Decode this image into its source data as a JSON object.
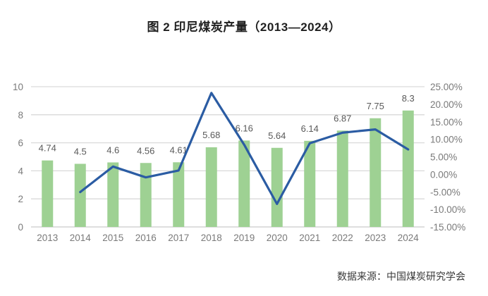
{
  "title": "图 2 印尼煤炭产量（2013—2024）",
  "footer": {
    "source": "数据来源：中国煤炭研究学会"
  },
  "colors": {
    "bar": "#9ED193",
    "line": "#2B5CA3",
    "grid": "#D9D9D9",
    "axis_bottom": "#C9C9C9",
    "axis_text": "#7A7A7A",
    "label_text": "#595959",
    "title_text": "#1F1F1F",
    "background": "#FFFFFF"
  },
  "chart_data": {
    "type": "bar+line combo",
    "title": "图 2 印尼煤炭产量（2013—2024）",
    "categories": [
      "2013",
      "2014",
      "2015",
      "2016",
      "2017",
      "2018",
      "2019",
      "2020",
      "2021",
      "2022",
      "2023",
      "2024"
    ],
    "series": [
      {
        "name": "bars_production",
        "type": "bar",
        "axis": "left",
        "values": [
          4.74,
          4.5,
          4.6,
          4.56,
          4.61,
          5.68,
          6.16,
          5.64,
          6.14,
          6.87,
          7.75,
          8.3
        ],
        "data_labels": [
          "4.74",
          "4.5",
          "4.6",
          "4.56",
          "4.61",
          "5.68",
          "6.16",
          "5.64",
          "6.14",
          "6.87",
          "7.75",
          "8.3"
        ]
      },
      {
        "name": "line_yoy_growth_percent",
        "type": "line",
        "axis": "right",
        "start_category_index": 1,
        "values": [
          -5.06,
          2.22,
          -0.87,
          1.1,
          23.21,
          8.45,
          -8.44,
          8.87,
          11.89,
          12.81,
          7.1
        ]
      }
    ],
    "left_axis": {
      "min": 0,
      "max": 10,
      "step": 2,
      "ticks": [
        "10",
        "8",
        "6",
        "4",
        "2",
        "0"
      ]
    },
    "right_axis": {
      "min": -15,
      "max": 25,
      "step": 5,
      "ticks": [
        "25.00%",
        "20.00%",
        "15.00%",
        "10.00%",
        "5.00%",
        "0.00%",
        "-5.00%",
        "-10.00%",
        "-15.00%"
      ]
    },
    "grid": true,
    "legend": "none",
    "xlabel": "",
    "ylabel": ""
  }
}
